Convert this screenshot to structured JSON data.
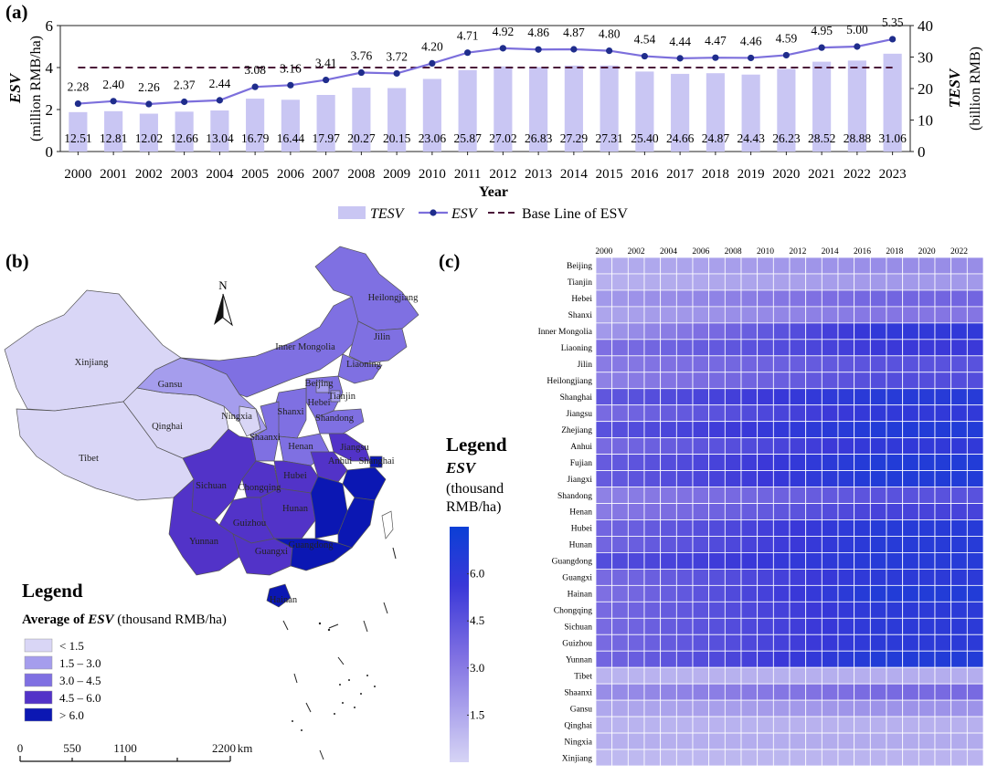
{
  "colors": {
    "bar": "#c9c6f3",
    "line": "#7c6fdc",
    "marker": "#1f2d8c",
    "baseline": "#4a1538",
    "heat_low": "#d6d4f5",
    "heat_high": "#0b3fd6"
  },
  "panel_labels": {
    "a": "(a)",
    "b": "(b)",
    "c": "(c)"
  },
  "chart_data": [
    {
      "id": "a",
      "type": "bar",
      "title": "",
      "xlabel": "Year",
      "ylabel_left_main": "ESV",
      "ylabel_left_unit": "(million RMB/ha)",
      "ylabel_right_main": "TESV",
      "ylabel_right_unit": "(billion RMB)",
      "ylim_left": [
        0,
        6
      ],
      "ylim_right": [
        0,
        40
      ],
      "yticks_left": [
        "0",
        "2",
        "4",
        "6"
      ],
      "yticks_right": [
        "0",
        "10",
        "20",
        "30",
        "40"
      ],
      "categories": [
        "2000",
        "2001",
        "2002",
        "2003",
        "2004",
        "2005",
        "2006",
        "2007",
        "2008",
        "2009",
        "2010",
        "2011",
        "2012",
        "2013",
        "2014",
        "2015",
        "2016",
        "2017",
        "2018",
        "2019",
        "2020",
        "2021",
        "2022",
        "2023"
      ],
      "series": [
        {
          "name": "TESV",
          "axis": "right",
          "kind": "bar",
          "values": [
            12.51,
            12.81,
            12.02,
            12.66,
            13.04,
            16.79,
            16.44,
            17.97,
            20.27,
            20.15,
            23.06,
            25.87,
            27.02,
            26.83,
            27.29,
            27.31,
            25.4,
            24.66,
            24.87,
            24.43,
            26.23,
            28.52,
            28.88,
            31.06
          ],
          "labels": [
            "12.51",
            "12.81",
            "12.02",
            "12.66",
            "13.04",
            "16.79",
            "16.44",
            "17.97",
            "20.27",
            "20.15",
            "23.06",
            "25.87",
            "27.02",
            "26.83",
            "27.29",
            "27.31",
            "25.40",
            "24.66",
            "24.87",
            "24.43",
            "26.23",
            "28.52",
            "28.88",
            "31.06"
          ]
        },
        {
          "name": "ESV",
          "axis": "left",
          "kind": "line",
          "values": [
            2.28,
            2.4,
            2.26,
            2.37,
            2.44,
            3.08,
            3.16,
            3.41,
            3.76,
            3.72,
            4.2,
            4.71,
            4.92,
            4.86,
            4.87,
            4.8,
            4.54,
            4.44,
            4.47,
            4.46,
            4.59,
            4.95,
            5.0,
            5.35
          ],
          "labels": [
            "2.28",
            "2.40",
            "2.26",
            "2.37",
            "2.44",
            "3.08",
            "3.16",
            "3.41",
            "3.76",
            "3.72",
            "4.20",
            "4.71",
            "4.92",
            "4.86",
            "4.87",
            "4.80",
            "4.54",
            "4.44",
            "4.47",
            "4.46",
            "4.59",
            "4.95",
            "5.00",
            "5.35"
          ]
        }
      ],
      "baseline": {
        "name": "Base Line of ESV",
        "value": 4.0
      },
      "legend": [
        "TESV",
        "ESV",
        "Base Line of ESV"
      ]
    },
    {
      "id": "c",
      "type": "heatmap",
      "title": "",
      "x_ticks": [
        "2000",
        "2002",
        "2004",
        "2006",
        "2008",
        "2010",
        "2012",
        "2014",
        "2016",
        "2018",
        "2020",
        "2022"
      ],
      "years_count": 24,
      "rows": [
        "Beijing",
        "Tianjin",
        "Hebei",
        "Shanxi",
        "Inner Mongolia",
        "Liaoning",
        "Jilin",
        "Heilongjiang",
        "Shanghai",
        "Jiangsu",
        "Zhejiang",
        "Anhui",
        "Fujian",
        "Jiangxi",
        "Shandong",
        "Henan",
        "Hubei",
        "Hunan",
        "Guangdong",
        "Guangxi",
        "Hainan",
        "Chongqing",
        "Sichuan",
        "Guizhou",
        "Yunnan",
        "Tibet",
        "Shaanxi",
        "Gansu",
        "Qinghai",
        "Ningxia",
        "Xinjiang"
      ],
      "start_values": [
        1.3,
        1.2,
        2.0,
        1.6,
        2.0,
        3.4,
        3.0,
        2.8,
        4.4,
        3.6,
        4.6,
        3.6,
        4.2,
        4.2,
        2.8,
        3.0,
        3.8,
        3.8,
        4.8,
        3.6,
        3.4,
        3.6,
        3.6,
        3.6,
        3.8,
        1.1,
        2.4,
        1.5,
        1.1,
        1.2,
        0.9
      ],
      "end_values": [
        2.4,
        2.0,
        3.8,
        3.2,
        6.0,
        5.6,
        4.6,
        4.8,
        6.4,
        6.0,
        6.6,
        6.0,
        6.6,
        6.6,
        4.6,
        5.2,
        6.4,
        6.4,
        6.4,
        6.2,
        6.6,
        6.2,
        6.2,
        6.2,
        6.6,
        1.3,
        3.6,
        2.2,
        1.2,
        1.4,
        1.1
      ],
      "colorbar": {
        "title": "Legend",
        "var": "ESV",
        "unit_1": "(thousand",
        "unit_2": "RMB/ha)",
        "range": [
          0,
          7.5
        ],
        "ticks": [
          "1.5",
          "3.0",
          "4.5",
          "6.0"
        ]
      }
    }
  ],
  "map": {
    "north_label": "N",
    "provinces": {
      "Xinjiang": "Xinjiang",
      "Tibet": "Tibet",
      "Qinghai": "Qinghai",
      "Gansu": "Gansu",
      "Inner Mongolia": "Inner Mongolia",
      "Heilongjiang": "Heilongjiang",
      "Jilin": "Jilin",
      "Liaoning": "Liaoning",
      "Beijing": "Beijing",
      "Tianjin": "Tianjin",
      "Hebei": "Hebei",
      "Shanxi": "Shanxi",
      "Shandong": "Shandong",
      "Ningxia": "Ningxia",
      "Shaanxi": "Shaanxi",
      "Henan": "Henan",
      "Jiangsu": "Jiangsu",
      "Anhui": "Anhui",
      "Shanghai": "Shanghai",
      "Sichuan": "Sichuan",
      "Chongqing": "Chongqing",
      "Hubei": "Hubei",
      "Hunan": "Hunan",
      "Guizhou": "Guizhou",
      "Yunnan": "Yunnan",
      "Guangxi": "Guangxi",
      "Guangdong": "Guangdong",
      "Hainan": "Hainan"
    },
    "legend": {
      "title": "Legend",
      "subtitle_pre": "Average of ",
      "subtitle_var": "ESV",
      "subtitle_post": " (thousand RMB/ha)",
      "classes": [
        {
          "label": "< 1.5",
          "color": "#d9d6f6"
        },
        {
          "label": "1.5 – 3.0",
          "color": "#a59ded"
        },
        {
          "label": "3.0 – 4.5",
          "color": "#7f70e2"
        },
        {
          "label": "4.5 – 6.0",
          "color": "#5233c8"
        },
        {
          "label": "> 6.0",
          "color": "#0b17b3"
        }
      ]
    },
    "scale": {
      "ticks": [
        "0",
        "550",
        "1100",
        "2200"
      ],
      "unit": "km"
    }
  }
}
